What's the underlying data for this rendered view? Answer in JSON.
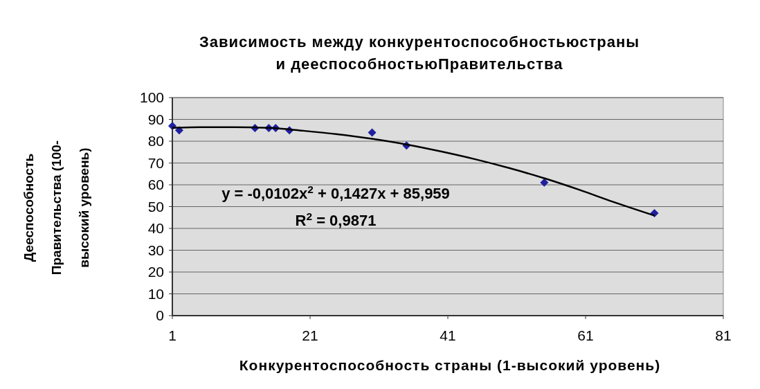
{
  "chart_data": {
    "type": "scatter",
    "title": "Зависимость между конкурентоспособностьюстраны\nи дееспособностьюПравительства",
    "xlabel": "Конкурентоспособность страны (1-высокий уровень)",
    "ylabel": "Дееспособность\nПравительства (100-\nвысокий уровень)",
    "xlim": [
      1,
      81
    ],
    "xticks": [
      1,
      21,
      41,
      61,
      81
    ],
    "ylim": [
      0,
      100
    ],
    "yticks": [
      0,
      10,
      20,
      30,
      40,
      50,
      60,
      70,
      80,
      90,
      100
    ],
    "grid": "y",
    "series": [
      {
        "color": "#1f1f9f",
        "marker": "diamond",
        "x": [
          1,
          2,
          13,
          15,
          16,
          18,
          30,
          35,
          55,
          71
        ],
        "values": [
          87,
          85,
          86,
          86,
          86,
          85,
          84,
          78,
          61,
          47
        ]
      },
      {
        "type": "line",
        "color": "#000000",
        "marker": "none",
        "line_style": "solid",
        "x": [
          1,
          5,
          10,
          15,
          20,
          25,
          30,
          35,
          40,
          45,
          50,
          55,
          60,
          65,
          71
        ],
        "values": [
          86.1,
          86.4,
          86.4,
          86.1,
          84.8,
          83.2,
          81.1,
          78.5,
          75.3,
          71.7,
          67.6,
          63.0,
          57.8,
          52.2,
          45.9
        ]
      }
    ],
    "annotations": [
      "y = -0,0102x$^{2}$ + 0,1427x + 85,959",
      "R$^{2}$ = 0,9871"
    ]
  }
}
